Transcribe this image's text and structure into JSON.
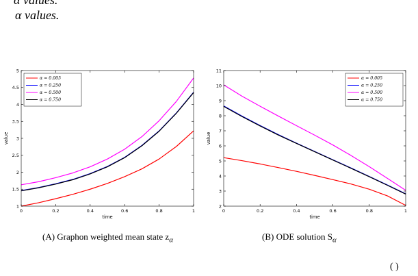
{
  "text": {
    "top_line_1": "α values.",
    "top_line_2": "α values.",
    "caption_a_label": "(A)",
    "caption_a_text": "Graphon weighted mean state z",
    "caption_a_sub": "α",
    "caption_b_label": "(B)",
    "caption_b_text": "ODE solution S",
    "caption_b_sub": "α",
    "page_number": "(  )"
  },
  "chart_data": [
    {
      "id": "chart-a",
      "type": "line",
      "xlabel": "time",
      "ylabel": "value",
      "xlim": [
        0,
        1
      ],
      "ylim": [
        1,
        5
      ],
      "xticks": [
        0,
        0.2,
        0.4,
        0.6,
        0.8,
        1
      ],
      "xtick_labels": [
        "0",
        "0.2",
        "0.4",
        "0.6",
        "0.8",
        "1"
      ],
      "yticks": [
        1,
        1.5,
        2,
        2.5,
        3,
        3.5,
        4,
        4.5,
        5
      ],
      "ytick_labels": [
        "1",
        "1.5",
        "2",
        "2.5",
        "3",
        "3.5",
        "4",
        "4.5",
        "5"
      ],
      "legend_position": "top-left",
      "series": [
        {
          "name": "α = 0.005",
          "color": "#ff0000",
          "x": [
            0,
            0.1,
            0.2,
            0.3,
            0.4,
            0.5,
            0.6,
            0.7,
            0.8,
            0.9,
            1
          ],
          "y": [
            1.0,
            1.1,
            1.22,
            1.35,
            1.5,
            1.67,
            1.87,
            2.1,
            2.39,
            2.76,
            3.22
          ]
        },
        {
          "name": "α = 0.250",
          "color": "#0000ff",
          "x": [
            0,
            0.1,
            0.2,
            0.3,
            0.4,
            0.5,
            0.6,
            0.7,
            0.8,
            0.9,
            1
          ],
          "y": [
            1.46,
            1.55,
            1.66,
            1.79,
            1.96,
            2.17,
            2.44,
            2.79,
            3.22,
            3.75,
            4.36
          ]
        },
        {
          "name": "α = 0.500",
          "color": "#ff00ff",
          "x": [
            0,
            0.1,
            0.2,
            0.3,
            0.4,
            0.5,
            0.6,
            0.7,
            0.8,
            0.9,
            1
          ],
          "y": [
            1.63,
            1.72,
            1.84,
            1.98,
            2.16,
            2.39,
            2.68,
            3.05,
            3.52,
            4.09,
            4.78
          ]
        },
        {
          "name": "α = 0.750",
          "color": "#000000",
          "x": [
            0,
            0.1,
            0.2,
            0.3,
            0.4,
            0.5,
            0.6,
            0.7,
            0.8,
            0.9,
            1
          ],
          "y": [
            1.45,
            1.54,
            1.65,
            1.78,
            1.95,
            2.16,
            2.43,
            2.78,
            3.21,
            3.74,
            4.35
          ]
        }
      ]
    },
    {
      "id": "chart-b",
      "type": "line",
      "xlabel": "time",
      "ylabel": "value",
      "xlim": [
        0,
        1
      ],
      "ylim": [
        2,
        11
      ],
      "xticks": [
        0,
        0.2,
        0.4,
        0.6,
        0.8,
        1
      ],
      "xtick_labels": [
        "0",
        "0.2",
        "0.4",
        "0.6",
        "0.8",
        "1"
      ],
      "yticks": [
        2,
        3,
        4,
        5,
        6,
        7,
        8,
        9,
        10,
        11
      ],
      "ytick_labels": [
        "2",
        "3",
        "4",
        "5",
        "6",
        "7",
        "8",
        "9",
        "10",
        "11"
      ],
      "legend_position": "top-right",
      "series": [
        {
          "name": "α = 0.005",
          "color": "#ff0000",
          "x": [
            0,
            0.1,
            0.2,
            0.3,
            0.4,
            0.5,
            0.6,
            0.7,
            0.8,
            0.9,
            1
          ],
          "y": [
            5.22,
            5.02,
            4.8,
            4.56,
            4.31,
            4.04,
            3.76,
            3.47,
            3.12,
            2.68,
            2.05
          ]
        },
        {
          "name": "α = 0.250",
          "color": "#0000ff",
          "x": [
            0,
            0.1,
            0.2,
            0.3,
            0.4,
            0.5,
            0.6,
            0.7,
            0.8,
            0.9,
            1
          ],
          "y": [
            8.65,
            7.98,
            7.35,
            6.75,
            6.18,
            5.63,
            5.08,
            4.53,
            3.97,
            3.4,
            2.82
          ]
        },
        {
          "name": "α = 0.500",
          "color": "#ff00ff",
          "x": [
            0,
            0.1,
            0.2,
            0.3,
            0.4,
            0.5,
            0.6,
            0.7,
            0.8,
            0.9,
            1
          ],
          "y": [
            10.05,
            9.3,
            8.63,
            7.98,
            7.34,
            6.71,
            6.06,
            5.36,
            4.62,
            3.84,
            3.05
          ]
        },
        {
          "name": "α = 0.750",
          "color": "#000000",
          "x": [
            0,
            0.1,
            0.2,
            0.3,
            0.4,
            0.5,
            0.6,
            0.7,
            0.8,
            0.9,
            1
          ],
          "y": [
            8.62,
            7.95,
            7.32,
            6.72,
            6.16,
            5.61,
            5.06,
            4.51,
            3.95,
            3.38,
            2.8
          ]
        }
      ]
    }
  ]
}
